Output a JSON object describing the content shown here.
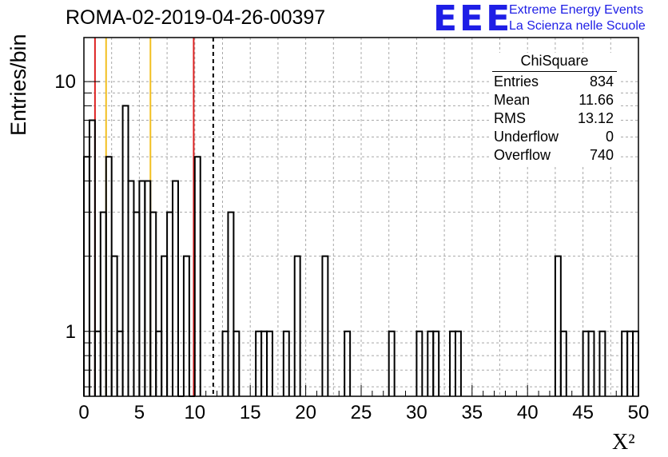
{
  "header": {
    "title": "ROMA-02-2019-04-26-00397",
    "logo_text": "EEE",
    "logo_line1": "Extreme Energy Events",
    "logo_line2": "La Scienza nelle Scuole",
    "logo_color": "#1e1ee6"
  },
  "stats_box": {
    "title": "ChiSquare",
    "rows": [
      {
        "label": "Entries",
        "value": "834"
      },
      {
        "label": "Mean",
        "value": "11.66"
      },
      {
        "label": "RMS",
        "value": "13.12"
      },
      {
        "label": "Underflow",
        "value": "0"
      },
      {
        "label": "Overflow",
        "value": "740"
      }
    ]
  },
  "chart_data": {
    "type": "histogram",
    "title": "ROMA-02-2019-04-26-00397",
    "xlabel": "X²",
    "ylabel": "Entries/bin",
    "xlim": [
      0,
      50
    ],
    "ylim": [
      0.55,
      15
    ],
    "yscale": "log",
    "grid": true,
    "bin_width": 0.5,
    "x_ticks": [
      0,
      5,
      10,
      15,
      20,
      25,
      30,
      35,
      40,
      45,
      50
    ],
    "y_tick_labels": [
      1,
      10
    ],
    "bins": [
      {
        "x": 0.0,
        "y": 5
      },
      {
        "x": 0.5,
        "y": 7
      },
      {
        "x": 1.0,
        "y": 1
      },
      {
        "x": 1.5,
        "y": 3
      },
      {
        "x": 2.0,
        "y": 5
      },
      {
        "x": 2.5,
        "y": 2
      },
      {
        "x": 3.0,
        "y": 1
      },
      {
        "x": 3.5,
        "y": 8
      },
      {
        "x": 4.0,
        "y": 4
      },
      {
        "x": 4.5,
        "y": 3
      },
      {
        "x": 5.0,
        "y": 4
      },
      {
        "x": 5.5,
        "y": 4
      },
      {
        "x": 6.0,
        "y": 3
      },
      {
        "x": 6.5,
        "y": 1
      },
      {
        "x": 7.0,
        "y": 2
      },
      {
        "x": 7.5,
        "y": 3
      },
      {
        "x": 8.0,
        "y": 4
      },
      {
        "x": 8.5,
        "y": 0
      },
      {
        "x": 9.0,
        "y": 2
      },
      {
        "x": 9.5,
        "y": 0
      },
      {
        "x": 10.0,
        "y": 5
      },
      {
        "x": 12.5,
        "y": 1
      },
      {
        "x": 13.0,
        "y": 3
      },
      {
        "x": 13.5,
        "y": 1
      },
      {
        "x": 15.5,
        "y": 1
      },
      {
        "x": 16.0,
        "y": 1
      },
      {
        "x": 16.5,
        "y": 1
      },
      {
        "x": 18.0,
        "y": 1
      },
      {
        "x": 19.0,
        "y": 2
      },
      {
        "x": 21.5,
        "y": 2
      },
      {
        "x": 23.5,
        "y": 1
      },
      {
        "x": 27.5,
        "y": 1
      },
      {
        "x": 30.0,
        "y": 1
      },
      {
        "x": 31.0,
        "y": 1
      },
      {
        "x": 31.5,
        "y": 1
      },
      {
        "x": 33.0,
        "y": 1
      },
      {
        "x": 33.5,
        "y": 1
      },
      {
        "x": 42.5,
        "y": 2
      },
      {
        "x": 43.0,
        "y": 1
      },
      {
        "x": 45.0,
        "y": 1
      },
      {
        "x": 45.5,
        "y": 1
      },
      {
        "x": 46.5,
        "y": 1
      },
      {
        "x": 48.5,
        "y": 1
      },
      {
        "x": 49.0,
        "y": 1
      },
      {
        "x": 49.5,
        "y": 1
      }
    ],
    "vertical_lines": [
      {
        "x": 1.0,
        "color": "#dd2222",
        "style": "solid"
      },
      {
        "x": 2.0,
        "color": "#f2bf20",
        "style": "solid"
      },
      {
        "x": 6.0,
        "color": "#f2bf20",
        "style": "solid"
      },
      {
        "x": 9.9,
        "color": "#dd2222",
        "style": "solid"
      },
      {
        "x": 11.66,
        "color": "#000000",
        "style": "dashed"
      }
    ]
  }
}
